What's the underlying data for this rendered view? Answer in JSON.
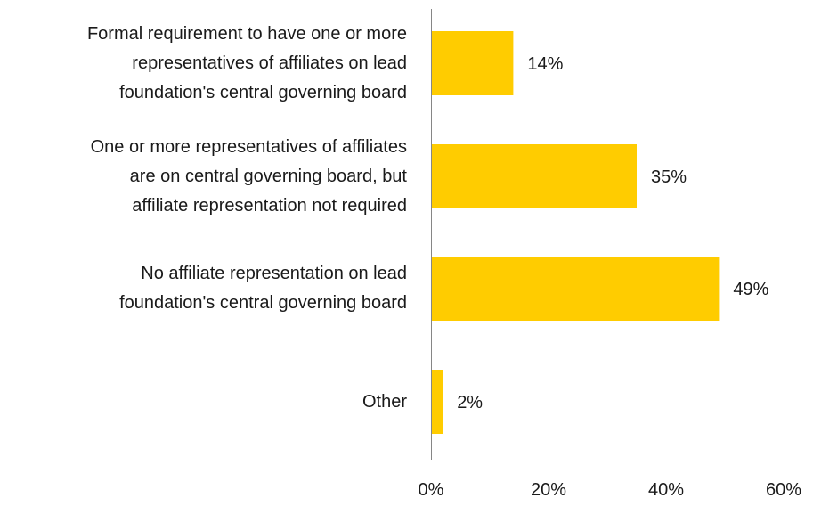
{
  "chart_data": {
    "type": "bar",
    "orientation": "horizontal",
    "categories": [
      "Formal requirement to have one or more representatives of affiliates on lead foundation's central governing board",
      "One or more representatives of affiliates are on central governing board, but affiliate representation not required",
      "No affiliate representation on lead foundation's central governing board",
      "Other"
    ],
    "category_lines": [
      [
        "Formal requirement to have one or more",
        "representatives of affiliates on lead",
        "foundation's central governing board"
      ],
      [
        "One or more representatives of affiliates",
        "are on central governing board, but",
        "affiliate representation not required"
      ],
      [
        "No affiliate representation on lead",
        "foundation's central governing board"
      ],
      [
        "Other"
      ]
    ],
    "values": [
      14,
      35,
      49,
      2
    ],
    "data_labels": [
      "14%",
      "35%",
      "49%",
      "2%"
    ],
    "xlim": [
      0,
      60
    ],
    "xticks": [
      0,
      20,
      40,
      60
    ],
    "xtick_labels": [
      "0%",
      "20%",
      "40%",
      "60%"
    ],
    "bar_color": "#FFCC00",
    "axis_color": "#868686",
    "grid": false,
    "title": "",
    "xlabel": "",
    "ylabel": ""
  }
}
